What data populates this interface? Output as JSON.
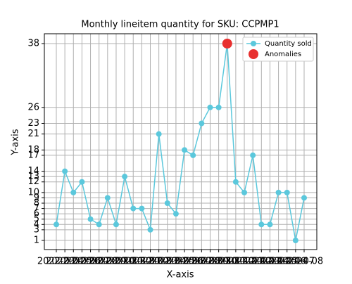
{
  "chart_data": {
    "type": "line",
    "title": "Monthly lineitem quantity for SKU: CCPMP1",
    "x_label": "X-axis",
    "y_label": "Y-axis",
    "categories": [
      "2022-03",
      "2022-04",
      "2022-05",
      "2022-06",
      "2022-07",
      "2022-08",
      "2022-09",
      "2022-10",
      "2022-11",
      "2022-12",
      "2023-01",
      "2023-02",
      "2023-03",
      "2023-04",
      "2023-05",
      "2023-06",
      "2023-07",
      "2023-08",
      "2023-09",
      "2023-10",
      "2023-11",
      "2023-12",
      "2024-01",
      "2024-02",
      "2024-03",
      "2024-04",
      "2024-05",
      "2024-06",
      "2024-07",
      "2024-08"
    ],
    "series": [
      {
        "name": "Quantity sold",
        "color": "#5bc8dc",
        "values": [
          4,
          14,
          10,
          12,
          5,
          4,
          9,
          4,
          13,
          7,
          7,
          3,
          21,
          8,
          6,
          18,
          17,
          23,
          26,
          26,
          38,
          12,
          10,
          17,
          4,
          4,
          10,
          10,
          1,
          9
        ]
      },
      {
        "name": "Anomalies",
        "color": "#e8302f",
        "values": [
          null,
          null,
          null,
          null,
          null,
          null,
          null,
          null,
          null,
          null,
          null,
          null,
          null,
          null,
          null,
          null,
          null,
          null,
          null,
          null,
          38,
          null,
          null,
          null,
          null,
          null,
          null,
          null,
          null,
          null
        ]
      }
    ],
    "ylim": [
      -0.72,
      39.85
    ],
    "yticks": [
      1,
      3,
      4,
      5,
      6,
      7,
      8,
      9,
      10,
      12,
      13,
      14,
      17,
      18,
      21,
      23,
      26,
      38
    ],
    "grid": true,
    "legend": "upper right"
  }
}
